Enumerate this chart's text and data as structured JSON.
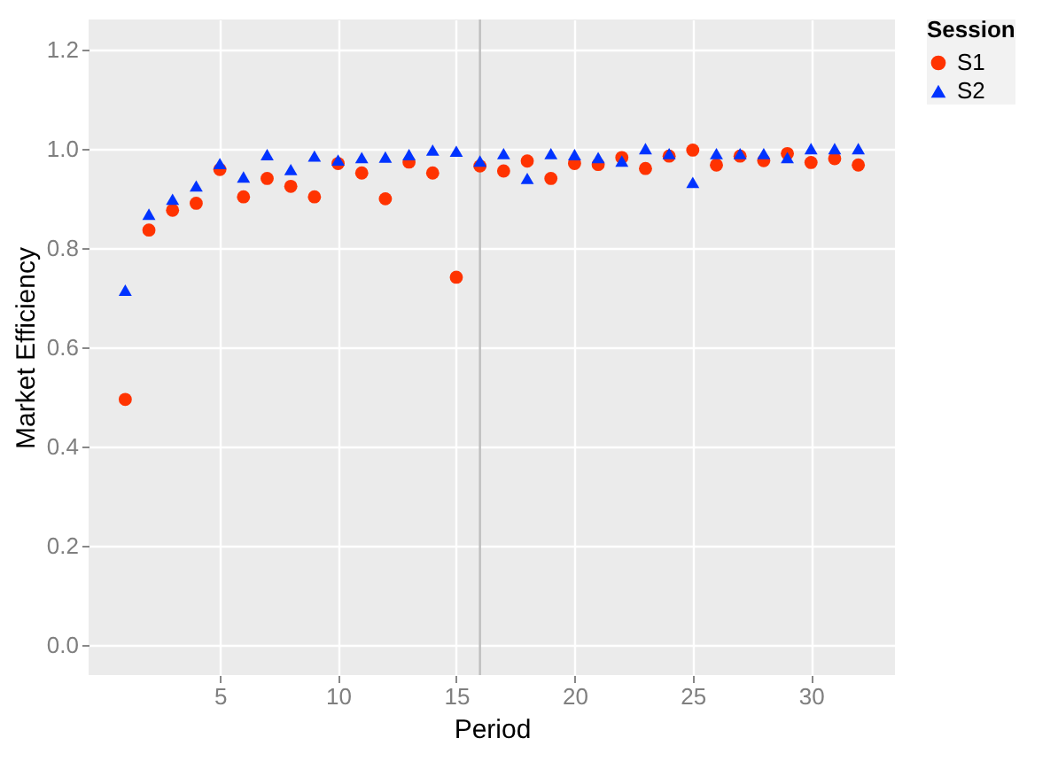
{
  "chart_data": {
    "type": "scatter",
    "xlabel": "Period",
    "ylabel": "Market Efficiency",
    "legend_title": "Session",
    "x": [
      1,
      2,
      3,
      4,
      5,
      6,
      7,
      8,
      9,
      10,
      11,
      12,
      13,
      14,
      15,
      16,
      17,
      18,
      19,
      20,
      21,
      22,
      23,
      24,
      25,
      26,
      27,
      28,
      29,
      30,
      31,
      32
    ],
    "series": [
      {
        "name": "S1",
        "color": "#ff3300",
        "marker": "circle",
        "values": [
          0.495,
          0.836,
          0.876,
          0.89,
          0.958,
          0.903,
          0.94,
          0.924,
          0.903,
          0.97,
          0.951,
          0.899,
          0.973,
          0.951,
          0.741,
          0.965,
          0.955,
          0.975,
          0.94,
          0.97,
          0.968,
          0.982,
          0.96,
          0.985,
          0.997,
          0.967,
          0.985,
          0.976,
          0.99,
          0.972,
          0.98,
          0.967
        ]
      },
      {
        "name": "S2",
        "color": "#0033ff",
        "marker": "triangle",
        "values": [
          0.715,
          0.868,
          0.898,
          0.925,
          0.97,
          0.943,
          0.988,
          0.958,
          0.985,
          0.977,
          0.982,
          0.983,
          0.988,
          0.997,
          0.995,
          0.975,
          0.99,
          0.94,
          0.99,
          0.988,
          0.982,
          0.975,
          1.0,
          0.99,
          0.932,
          0.99,
          0.99,
          0.99,
          0.982,
          1.0,
          1.0,
          1.0
        ]
      }
    ],
    "xlim": [
      -0.55,
      33.55
    ],
    "xticks": [
      5,
      10,
      15,
      20,
      25,
      30
    ],
    "ylim": [
      -0.06,
      1.26
    ],
    "yticks": [
      {
        "value": 0,
        "label": "0.0"
      },
      {
        "value": 0.2,
        "label": "0.2"
      },
      {
        "value": 0.4,
        "label": "0.4"
      },
      {
        "value": 0.6,
        "label": "0.6"
      },
      {
        "value": 0.8,
        "label": "0.8"
      },
      {
        "value": 1,
        "label": "1.0"
      },
      {
        "value": 1.2,
        "label": "1.2"
      }
    ],
    "ref_lines": [
      {
        "axis": "x",
        "value": 16,
        "color": "#bebebe"
      }
    ],
    "grid": true,
    "legend": "right"
  }
}
